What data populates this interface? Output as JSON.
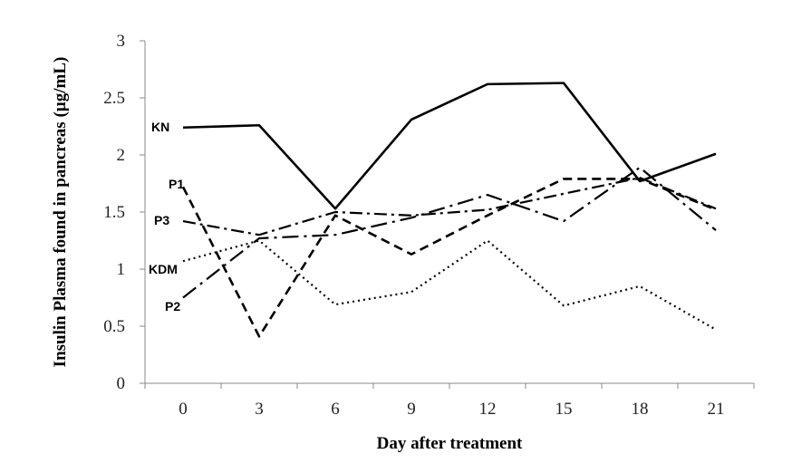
{
  "chart_data": {
    "type": "line",
    "xlabel": "Day after treatment",
    "ylabel": "Insulin Plasma found in pancreas (µg/mL)",
    "x": [
      0,
      3,
      6,
      9,
      12,
      15,
      18,
      21
    ],
    "xticks": [
      "0",
      "3",
      "6",
      "9",
      "12",
      "15",
      "18",
      "21"
    ],
    "ylim": [
      0,
      3
    ],
    "yticks": [
      "0",
      "0.5",
      "1",
      "1.5",
      "2",
      "2.5",
      "3"
    ],
    "grid": false,
    "series": [
      {
        "name": "KN",
        "values": [
          2.24,
          2.26,
          1.53,
          2.31,
          2.62,
          2.63,
          1.77,
          2.01
        ]
      },
      {
        "name": "P1",
        "values": [
          1.72,
          0.41,
          1.47,
          1.13,
          1.47,
          1.79,
          1.79,
          1.52
        ]
      },
      {
        "name": "P3",
        "values": [
          1.42,
          1.3,
          1.5,
          1.47,
          1.52,
          1.66,
          1.8,
          1.53
        ]
      },
      {
        "name": "KDM",
        "values": [
          1.07,
          1.25,
          0.69,
          0.8,
          1.25,
          0.68,
          0.85,
          0.47
        ]
      },
      {
        "name": "P2",
        "values": [
          0.75,
          1.27,
          1.3,
          1.45,
          1.65,
          1.42,
          1.89,
          1.34
        ]
      }
    ]
  }
}
